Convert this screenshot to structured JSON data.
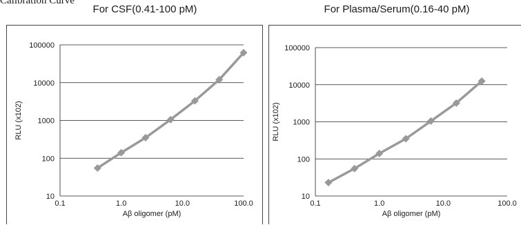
{
  "page": {
    "heading": "Calibration Curve"
  },
  "chart_data": [
    {
      "type": "line",
      "title": "For CSF(0.41-100 pM)",
      "xlabel": "Aβ oligomer (pM)",
      "ylabel": "RLU (x102)",
      "xscale": "log",
      "yscale": "log",
      "xlim": [
        0.1,
        100
      ],
      "ylim": [
        10,
        100000
      ],
      "xticks": [
        "0.1",
        "1.0",
        "10.0",
        "100.0"
      ],
      "yticks": [
        "10",
        "100",
        "1000",
        "10000",
        "100000"
      ],
      "grid": "horizontal",
      "marker": "diamond",
      "color": "#999999",
      "series": [
        {
          "x": [
            0.41,
            1.0,
            2.5,
            6.4,
            16,
            40,
            100
          ],
          "y": [
            55,
            140,
            350,
            1050,
            3300,
            12000,
            62000
          ]
        }
      ]
    },
    {
      "type": "line",
      "title": "For Plasma/Serum(0.16-40 pM)",
      "xlabel": "Aβ oligomer (pM)",
      "ylabel": "RLU (x102)",
      "xscale": "log",
      "yscale": "log",
      "xlim": [
        0.1,
        100
      ],
      "ylim": [
        10,
        100000
      ],
      "xticks": [
        "0.1",
        "1.0",
        "10.0",
        "100.0"
      ],
      "yticks": [
        "10",
        "100",
        "1000",
        "10000",
        "100000"
      ],
      "grid": "horizontal",
      "marker": "diamond",
      "color": "#999999",
      "series": [
        {
          "x": [
            0.16,
            0.41,
            1.0,
            2.6,
            6.4,
            16,
            40
          ],
          "y": [
            23,
            55,
            140,
            350,
            1050,
            3200,
            12500
          ]
        }
      ]
    }
  ]
}
